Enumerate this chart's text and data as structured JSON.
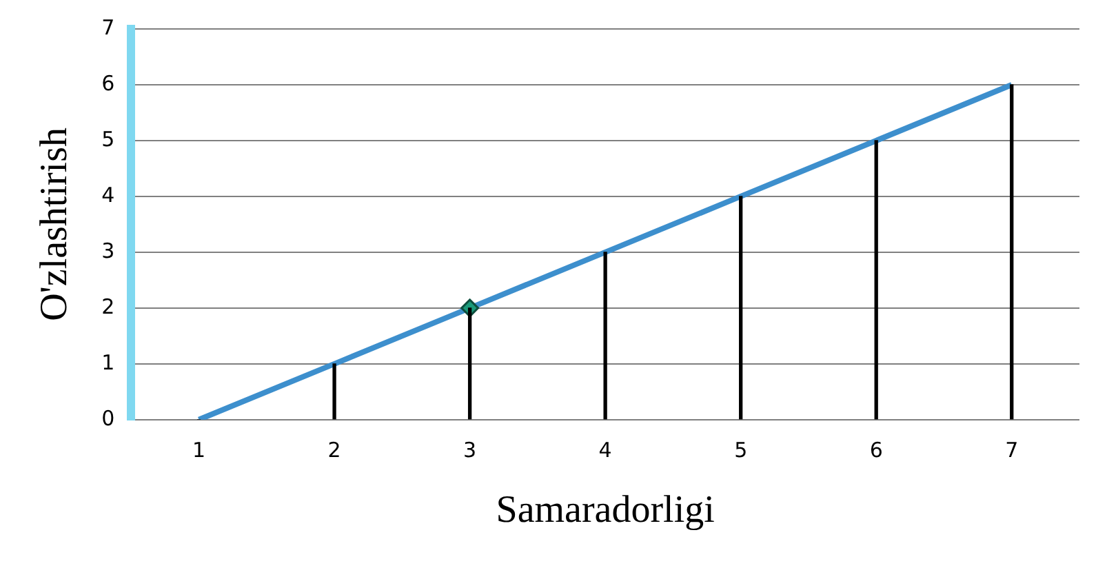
{
  "chart_data": {
    "type": "line",
    "xlabel": "Samaradorligi",
    "ylabel": "O'zlashtirish",
    "categories": [
      "1",
      "2",
      "3",
      "4",
      "5",
      "6",
      "7"
    ],
    "series": [
      {
        "type": "bar",
        "color": "#000000",
        "values": [
          0,
          1,
          2,
          3,
          4,
          5,
          6
        ]
      },
      {
        "color": "#3d8fcd",
        "values": [
          0,
          1,
          2,
          3,
          4,
          5,
          6
        ],
        "marker": "none"
      },
      {
        "type": "scatter",
        "color": "#1a9a7a",
        "x": [
          "3"
        ],
        "values": [
          2
        ],
        "marker": "diamond"
      }
    ],
    "ylim": [
      0,
      7
    ],
    "yticks": [
      0,
      1,
      2,
      3,
      4,
      5,
      6,
      7
    ],
    "grid": "y",
    "legend": false
  }
}
